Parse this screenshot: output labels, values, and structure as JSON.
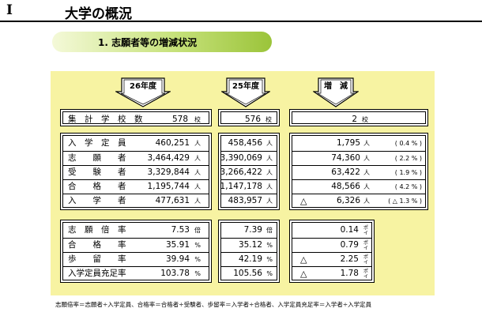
{
  "heading": {
    "number": "I",
    "title": "大学の概況"
  },
  "subheading": "1. 志願者等の増減状況",
  "columns": {
    "y26": "26年度",
    "y25": "25年度",
    "diff": "増　減"
  },
  "school_count": {
    "label": "集　計　学　校　数",
    "y26": "578",
    "y26_unit": "校",
    "y25": "576",
    "y25_unit": "校",
    "diff": "2",
    "diff_unit": "校"
  },
  "counts": [
    {
      "label": "入　学　定　員",
      "y26": "460,251",
      "y25": "458,456",
      "unit": "人",
      "tri": "",
      "diff": "1,795",
      "pct": "( 0.4 % )"
    },
    {
      "label": "志　　願　　者",
      "y26": "3,464,429",
      "y25": "3,390,069",
      "unit": "人",
      "tri": "",
      "diff": "74,360",
      "pct": "( 2.2 % )"
    },
    {
      "label": "受　　験　　者",
      "y26": "3,329,844",
      "y25": "3,266,422",
      "unit": "人",
      "tri": "",
      "diff": "63,422",
      "pct": "( 1.9 % )"
    },
    {
      "label": "合　　格　　者",
      "y26": "1,195,744",
      "y25": "1,147,178",
      "unit": "人",
      "tri": "",
      "diff": "48,566",
      "pct": "( 4.2 % )"
    },
    {
      "label": "入　　学　　者",
      "y26": "477,631",
      "y25": "483,957",
      "unit": "人",
      "tri": "△",
      "diff": "6,326",
      "pct": "( △ 1.3 % )"
    }
  ],
  "rates": [
    {
      "label": "志　願　倍　率",
      "y26": "7.53",
      "y25": "7.39",
      "unit": "倍",
      "tri": "",
      "diff": "0.14"
    },
    {
      "label": "合　　格　　率",
      "y26": "35.91",
      "y25": "35.12",
      "unit": "%",
      "tri": "",
      "diff": "0.79"
    },
    {
      "label": "歩　　留　　率",
      "y26": "39.94",
      "y25": "42.19",
      "unit": "%",
      "tri": "△",
      "diff": "2.25"
    },
    {
      "label": "入学定員充足率",
      "y26": "103.78",
      "y25": "105.56",
      "unit": "%",
      "tri": "△",
      "diff": "1.78"
    }
  ],
  "point_label": [
    "ポ",
    "イ",
    "ン",
    "ト"
  ],
  "footer": "志願倍率＝志願者÷入学定員、合格率＝合格者÷受験者、歩留率＝入学者÷合格者、入学定員充足率＝入学者÷入学定員",
  "colors": {
    "panel": "#f7f3a2",
    "pill_light": "#f4f9d8",
    "pill_dark": "#9bc43a"
  }
}
